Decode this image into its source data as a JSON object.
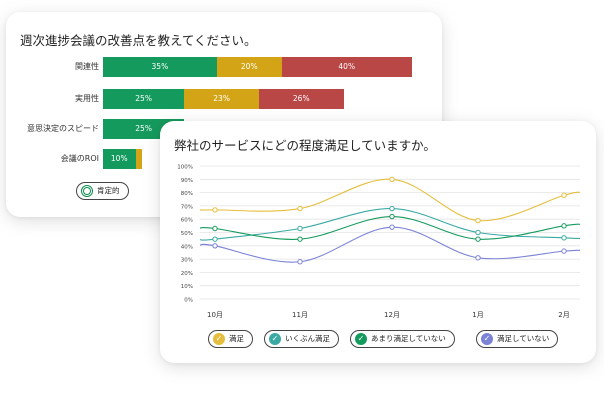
{
  "survey_card": {
    "title": "週次進捗会議の改善点を教えてください。",
    "rows": [
      {
        "label": "関連性",
        "segments": [
          {
            "value": 35,
            "text": "35%",
            "color": "#159a5d"
          },
          {
            "value": 20,
            "text": "20%",
            "color": "#d3a516"
          },
          {
            "value": 40,
            "text": "40%",
            "color": "#b94745"
          }
        ]
      },
      {
        "label": "実用性",
        "segments": [
          {
            "value": 25,
            "text": "25%",
            "color": "#159a5d"
          },
          {
            "value": 23,
            "text": "23%",
            "color": "#d3a516"
          },
          {
            "value": 26,
            "text": "26%",
            "color": "#b94745"
          }
        ]
      },
      {
        "label": "意思決定のスピード",
        "segments": [
          {
            "value": 25,
            "text": "25%",
            "color": "#159a5d"
          }
        ]
      },
      {
        "label": "会議のROI",
        "segments": [
          {
            "value": 10,
            "text": "10%",
            "color": "#159a5d"
          },
          {
            "value": 2,
            "text": "",
            "color": "#d3a516"
          }
        ]
      }
    ],
    "legend": [
      {
        "label": "肯定的",
        "icon": "smile-icon",
        "color": "#0e8c4f"
      }
    ]
  },
  "satisfaction_card": {
    "title": "弊社のサービスにどの程度満足していますか。",
    "chart_data": {
      "type": "line",
      "x": [
        "10月",
        "11月",
        "12月",
        "1月",
        "2月"
      ],
      "ylim": [
        0,
        100
      ],
      "yticks": [
        "0%",
        "10%",
        "20%",
        "30%",
        "40%",
        "50%",
        "60%",
        "70%",
        "80%",
        "90%",
        "100%"
      ],
      "grid": true,
      "series": [
        {
          "name": "満足",
          "color": "#e6bd3a",
          "values": [
            67,
            68,
            90,
            59,
            78
          ]
        },
        {
          "name": "いくぶん満足",
          "color": "#3aa9a4",
          "values": [
            45,
            53,
            68,
            50,
            46
          ]
        },
        {
          "name": "あまり満足していない",
          "color": "#159a5d",
          "values": [
            53,
            45,
            62,
            45,
            55
          ]
        },
        {
          "name": "満足していない",
          "color": "#7a83d6",
          "values": [
            40,
            28,
            54,
            31,
            36
          ]
        }
      ]
    }
  }
}
